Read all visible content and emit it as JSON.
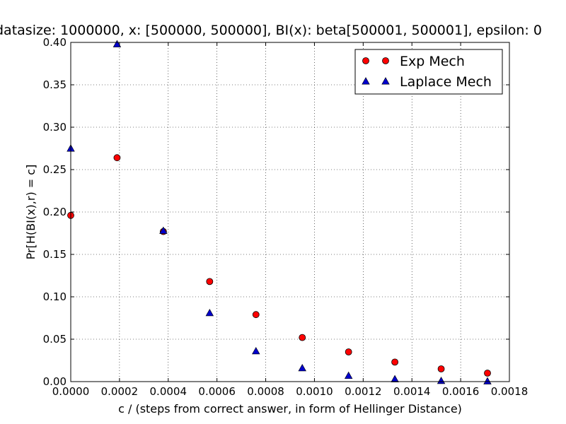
{
  "chart_data": {
    "type": "scatter",
    "title": "datasize: 1000000, x: [500000, 500000], BI(x): beta[500001, 500001], epsilon: 0",
    "xlabel": "c / (steps from correct answer, in form of Hellinger Distance)",
    "ylabel": "Pr[H(BI(x),r) = c]",
    "xlim": [
      0,
      0.0018
    ],
    "ylim": [
      0,
      0.4
    ],
    "xticks": [
      "0.0000",
      "0.0002",
      "0.0004",
      "0.0006",
      "0.0008",
      "0.0010",
      "0.0012",
      "0.0014",
      "0.0016",
      "0.0018"
    ],
    "yticks": [
      "0.00",
      "0.05",
      "0.10",
      "0.15",
      "0.20",
      "0.25",
      "0.30",
      "0.35",
      "0.40"
    ],
    "grid": true,
    "legend_position": "top-right",
    "series": [
      {
        "name": "Exp Mech",
        "marker": "circle",
        "color": "#ff0000",
        "x": [
          0.0,
          0.00019,
          0.00038,
          0.00057,
          0.00076,
          0.00095,
          0.00114,
          0.00133,
          0.00152,
          0.00171
        ],
        "y": [
          0.196,
          0.264,
          0.177,
          0.118,
          0.079,
          0.052,
          0.035,
          0.023,
          0.015,
          0.01
        ]
      },
      {
        "name": "Laplace Mech",
        "marker": "triangle",
        "color": "#0000cc",
        "x": [
          0.0,
          0.00019,
          0.00038,
          0.00057,
          0.00076,
          0.00095,
          0.00114,
          0.00133,
          0.00152,
          0.00171
        ],
        "y": [
          0.275,
          0.398,
          0.178,
          0.081,
          0.036,
          0.016,
          0.007,
          0.003,
          0.001,
          0.0005
        ]
      }
    ]
  }
}
